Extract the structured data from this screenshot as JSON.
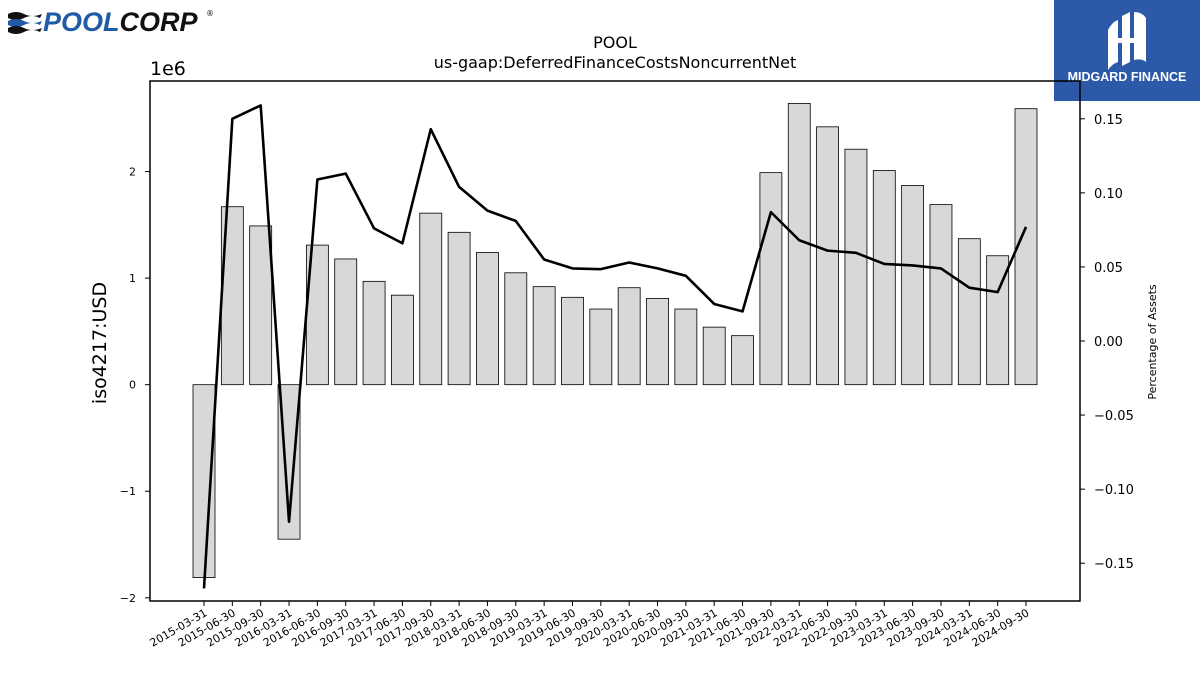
{
  "logos": {
    "left_text": "POOLCORP",
    "left_registered": "®",
    "right_text": "MIDGARD FINANCE"
  },
  "colors": {
    "bar_fill": "#d8d8d8",
    "bar_stroke": "#000000",
    "line": "#000000",
    "poolcorp_blue": "#1f5ba6",
    "poolcorp_dark": "#111111",
    "midgard_bg": "#2c5aa9"
  },
  "chart_data": {
    "type": "bar",
    "title": "POOL",
    "subtitle": "us-gaap:DeferredFinanceCostsNoncurrentNet",
    "ylabel": "iso4217:USD",
    "y2label": "Percentage of Assets",
    "y_multiplier_label": "1e6",
    "ylim": [
      -2030000,
      2850000
    ],
    "y2lim": [
      -0.1755,
      0.1755
    ],
    "yticks": [
      -2000000,
      -1000000,
      0,
      1000000,
      2000000
    ],
    "ytick_labels": [
      "−2",
      "−1",
      "0",
      "1",
      "2"
    ],
    "y2ticks": [
      -0.15,
      -0.1,
      -0.05,
      0.0,
      0.05,
      0.1,
      0.15
    ],
    "y2tick_labels": [
      "−0.15",
      "−0.10",
      "−0.05",
      "0.00",
      "0.05",
      "0.10",
      "0.15"
    ],
    "categories": [
      "2015-03-31",
      "2015-06-30",
      "2015-09-30",
      "2016-03-31",
      "2016-06-30",
      "2016-09-30",
      "2017-03-31",
      "2017-06-30",
      "2017-09-30",
      "2018-03-31",
      "2018-06-30",
      "2018-09-30",
      "2019-03-31",
      "2019-06-30",
      "2019-09-30",
      "2020-03-31",
      "2020-06-30",
      "2020-09-30",
      "2021-03-31",
      "2021-06-30",
      "2021-09-30",
      "2022-03-31",
      "2022-06-30",
      "2022-09-30",
      "2023-03-31",
      "2023-06-30",
      "2023-09-30",
      "2024-03-31",
      "2024-06-30",
      "2024-09-30"
    ],
    "series": [
      {
        "type": "bar",
        "axis": "left",
        "values": [
          -1810000,
          1670000,
          1490000,
          -1450000,
          1310000,
          1180000,
          970000,
          840000,
          1610000,
          1430000,
          1240000,
          1050000,
          920000,
          820000,
          710000,
          910000,
          810000,
          710000,
          540000,
          460000,
          1990000,
          2640000,
          2420000,
          2210000,
          2010000,
          1870000,
          1690000,
          1370000,
          1210000,
          2590000
        ]
      },
      {
        "type": "line",
        "axis": "right",
        "values": [
          -0.167,
          0.15,
          0.159,
          -0.122,
          0.109,
          0.113,
          0.076,
          0.066,
          0.143,
          0.104,
          0.088,
          0.081,
          0.055,
          0.049,
          0.0485,
          0.053,
          0.049,
          0.044,
          0.025,
          0.02,
          0.087,
          0.068,
          0.061,
          0.0595,
          0.052,
          0.051,
          0.049,
          0.036,
          0.033,
          0.077
        ]
      }
    ],
    "grid": false,
    "legend": "none"
  }
}
